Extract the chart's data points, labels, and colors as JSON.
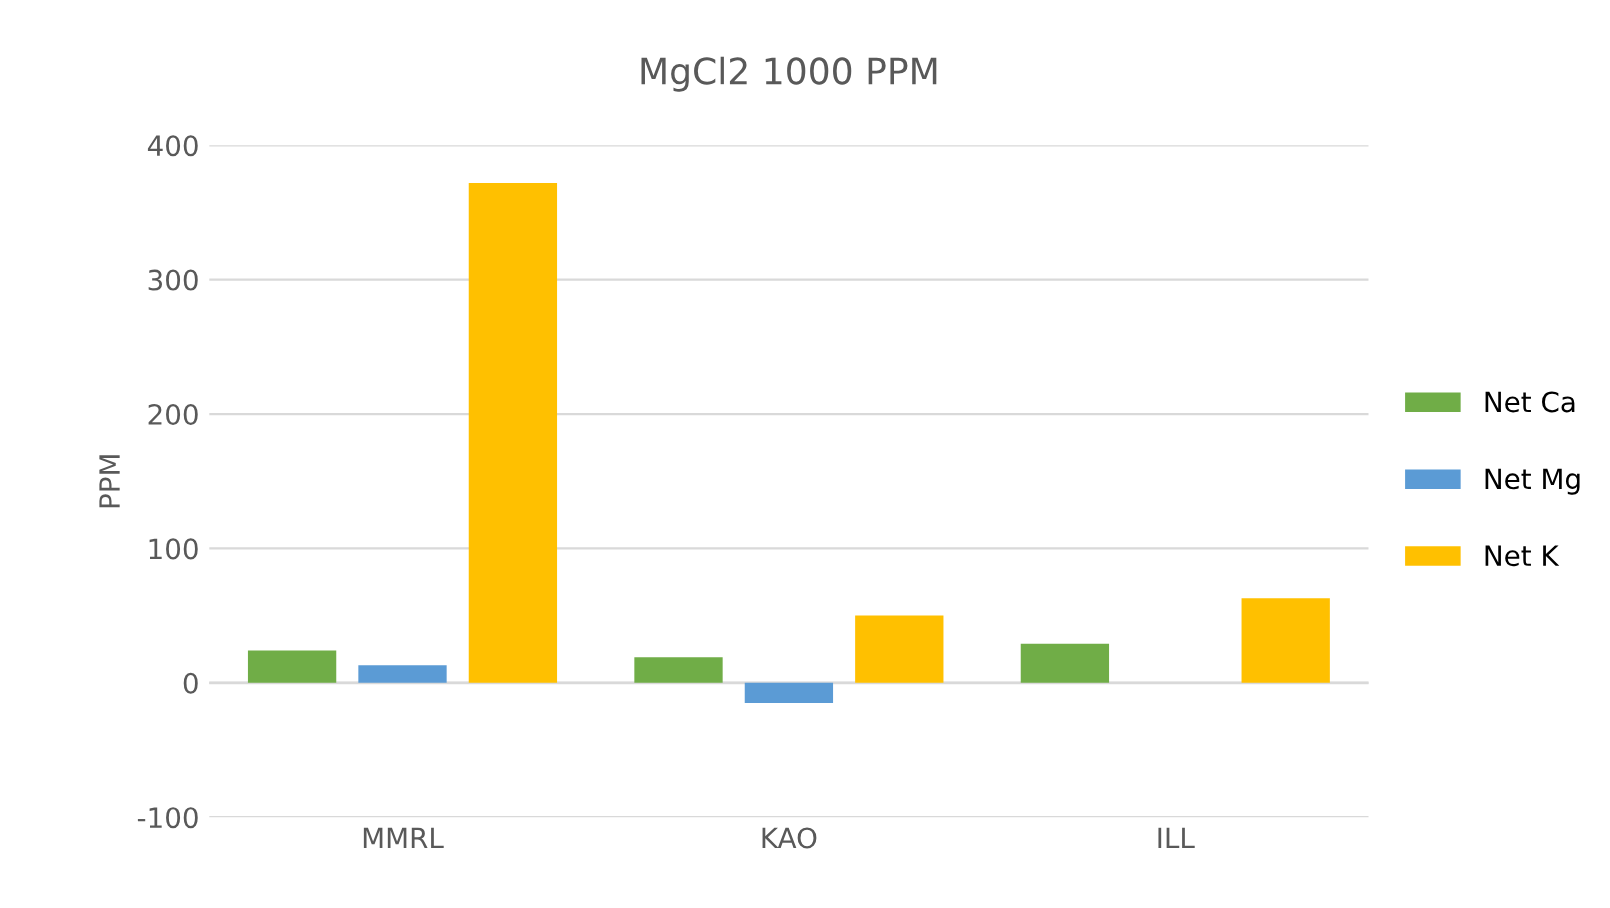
{
  "chart_data": {
    "type": "bar",
    "title": "MgCl2 1000 PPM",
    "ylabel": "PPM",
    "categories": [
      "MMRL",
      "KAO",
      "ILL"
    ],
    "series": [
      {
        "name": "Net Ca",
        "color": "#70ad47",
        "values": [
          24,
          19,
          29
        ]
      },
      {
        "name": "Net Mg",
        "color": "#5b9bd5",
        "values": [
          13,
          -15,
          0
        ]
      },
      {
        "name": "Net K",
        "color": "#ffc000",
        "values": [
          372,
          50,
          63
        ]
      }
    ],
    "ylim": [
      -100,
      400
    ],
    "yticks": [
      -100,
      0,
      100,
      200,
      300,
      400
    ],
    "grid": "y",
    "legend": "right"
  }
}
